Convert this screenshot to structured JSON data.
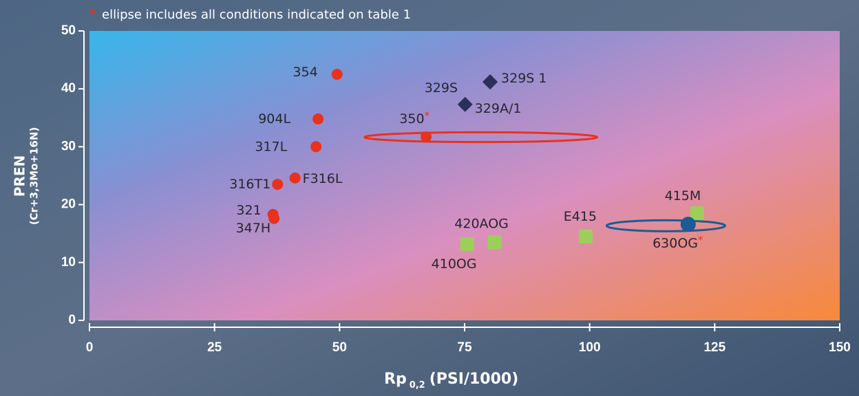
{
  "chart_data": {
    "type": "scatter",
    "note": {
      "marker": "*",
      "text": "ellipse includes all conditions  indicated on table 1"
    },
    "y_label": {
      "main": "PREN",
      "sub": "(Cr+3,3Mo+16N)"
    },
    "x_label": {
      "main": "Rp",
      "subscript": "0,2",
      "rest": "(PSI/1000)"
    },
    "xlim": [
      0,
      150
    ],
    "xticks": [
      0,
      25,
      50,
      75,
      100,
      125,
      150
    ],
    "ylim": [
      0,
      50
    ],
    "yticks": [
      0,
      10,
      20,
      30,
      40,
      50
    ],
    "series": [
      {
        "color": "#e8321e",
        "marker": "circle",
        "points": [
          {
            "label": "354",
            "x": 49.5,
            "y": 42.5
          },
          {
            "label": "904L",
            "x": 45.7,
            "y": 34.8
          },
          {
            "label": "317L",
            "x": 45.3,
            "y": 30.0
          },
          {
            "label": "F316L",
            "x": 41.1,
            "y": 24.6
          },
          {
            "label": "316T1",
            "x": 37.6,
            "y": 23.5
          },
          {
            "label": "321",
            "x": 36.7,
            "y": 18.3
          },
          {
            "label": "347H",
            "x": 36.9,
            "y": 17.6
          },
          {
            "label": "350",
            "x": 67.3,
            "y": 31.7,
            "asterisk": "*"
          }
        ]
      },
      {
        "color": "#2b2f5c",
        "marker": "diamond",
        "points": [
          {
            "label": "329S 1",
            "x": 80.1,
            "y": 41.2
          },
          {
            "label": "329S",
            "x": 80.1,
            "y": 41.2
          },
          {
            "label": "329A/1",
            "x": 75.1,
            "y": 37.3
          }
        ]
      },
      {
        "color": "#9ccf5a",
        "marker": "square",
        "points": [
          {
            "label": "410OG",
            "x": 75.5,
            "y": 13.2
          },
          {
            "label": "420AOG",
            "x": 81.0,
            "y": 13.5
          },
          {
            "label": "E415",
            "x": 99.2,
            "y": 14.5
          },
          {
            "label": "415M",
            "x": 121.5,
            "y": 18.5
          }
        ]
      },
      {
        "color": "#1d5a96",
        "marker": "circle",
        "points": [
          {
            "label": "630OG",
            "x": 119.7,
            "y": 16.6,
            "asterisk": "*"
          }
        ]
      }
    ],
    "ellipses": [
      {
        "color": "#e8321e",
        "x": [
          55,
          101.5
        ],
        "y": [
          30.8,
          32.5
        ]
      },
      {
        "color": "#1d5a96",
        "x": [
          103.4,
          127.1
        ],
        "y": [
          15.4,
          17.3
        ]
      }
    ]
  }
}
